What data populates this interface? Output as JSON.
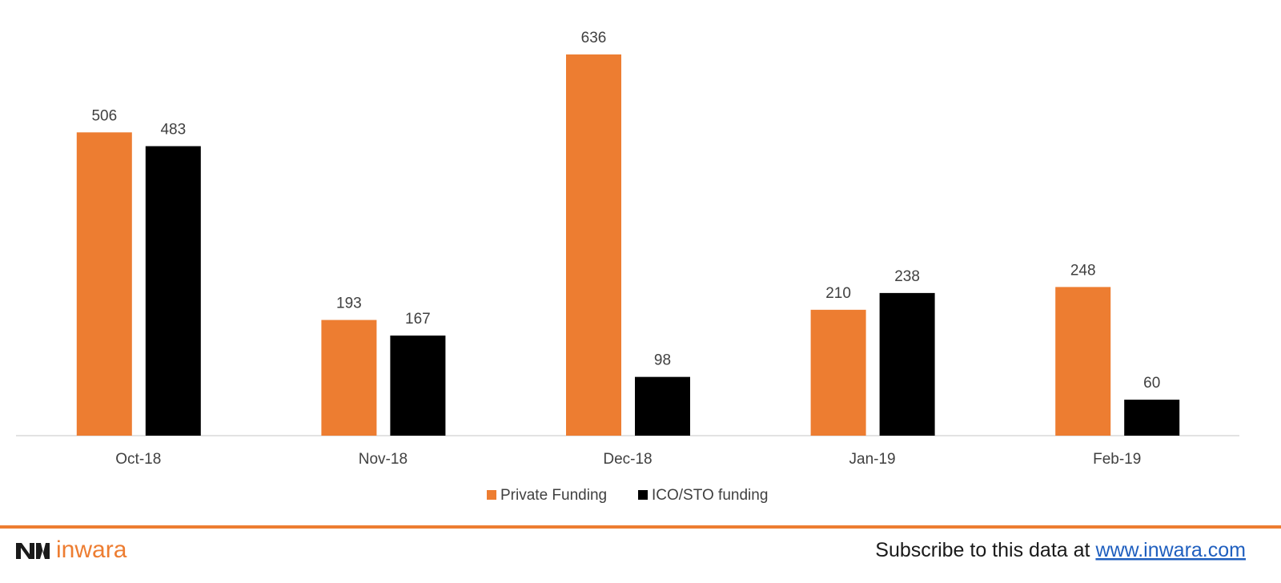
{
  "chart_data": {
    "type": "bar",
    "categories": [
      "Oct-18",
      "Nov-18",
      "Dec-18",
      "Jan-19",
      "Feb-19"
    ],
    "series": [
      {
        "name": "Private Funding",
        "color": "#ed7d31",
        "values": [
          506,
          193,
          636,
          210,
          248
        ]
      },
      {
        "name": "ICO/STO funding",
        "color": "#000000",
        "values": [
          483,
          167,
          98,
          238,
          60
        ]
      }
    ],
    "legend": "bottom"
  },
  "footer": {
    "brand": "inwara",
    "text": "Subscribe to this data at ",
    "link": "www.inwara.com"
  }
}
